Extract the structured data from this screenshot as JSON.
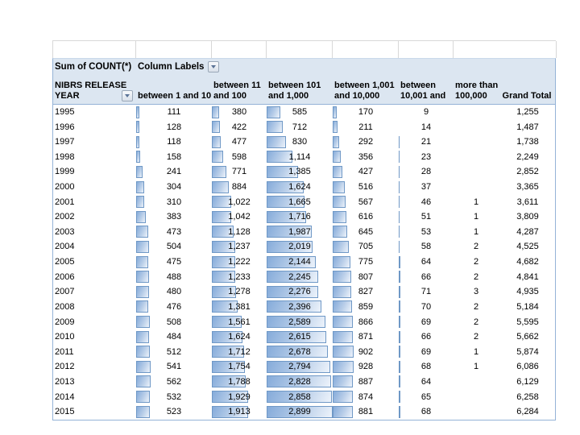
{
  "pivot": {
    "header": {
      "measure": "Sum of COUNT(*)",
      "column_labels": "Column Labels",
      "row_field_line1": "NIBRS RELEASE",
      "row_field_line2": "YEAR"
    },
    "columns": [
      {
        "line1": "",
        "line2": "between 1 and 10"
      },
      {
        "line1": "between 11",
        "line2": "and 100"
      },
      {
        "line1": "between 101",
        "line2": "and 1,000"
      },
      {
        "line1": "between 1,001",
        "line2": "and 10,000"
      },
      {
        "line1": "between",
        "line2": "10,001 and"
      },
      {
        "line1": "more than",
        "line2": "100,000"
      },
      {
        "line1": "",
        "line2": "Grand Total"
      }
    ],
    "bar_scale_max": 2899,
    "rows": [
      {
        "year": "1995",
        "values": [
          "111",
          "380",
          "585",
          "170",
          "9",
          ""
        ],
        "total": "1,255"
      },
      {
        "year": "1996",
        "values": [
          "128",
          "422",
          "712",
          "211",
          "14",
          ""
        ],
        "total": "1,487"
      },
      {
        "year": "1997",
        "values": [
          "118",
          "477",
          "830",
          "292",
          "21",
          ""
        ],
        "total": "1,738"
      },
      {
        "year": "1998",
        "values": [
          "158",
          "598",
          "1,114",
          "356",
          "23",
          ""
        ],
        "total": "2,249"
      },
      {
        "year": "1999",
        "values": [
          "241",
          "771",
          "1,385",
          "427",
          "28",
          ""
        ],
        "total": "2,852"
      },
      {
        "year": "2000",
        "values": [
          "304",
          "884",
          "1,624",
          "516",
          "37",
          ""
        ],
        "total": "3,365"
      },
      {
        "year": "2001",
        "values": [
          "310",
          "1,022",
          "1,665",
          "567",
          "46",
          "1"
        ],
        "total": "3,611"
      },
      {
        "year": "2002",
        "values": [
          "383",
          "1,042",
          "1,716",
          "616",
          "51",
          "1"
        ],
        "total": "3,809"
      },
      {
        "year": "2003",
        "values": [
          "473",
          "1,128",
          "1,987",
          "645",
          "53",
          "1"
        ],
        "total": "4,287"
      },
      {
        "year": "2004",
        "values": [
          "504",
          "1,237",
          "2,019",
          "705",
          "58",
          "2"
        ],
        "total": "4,525"
      },
      {
        "year": "2005",
        "values": [
          "475",
          "1,222",
          "2,144",
          "775",
          "64",
          "2"
        ],
        "total": "4,682"
      },
      {
        "year": "2006",
        "values": [
          "488",
          "1,233",
          "2,245",
          "807",
          "66",
          "2"
        ],
        "total": "4,841"
      },
      {
        "year": "2007",
        "values": [
          "480",
          "1,278",
          "2,276",
          "827",
          "71",
          "3"
        ],
        "total": "4,935"
      },
      {
        "year": "2008",
        "values": [
          "476",
          "1,381",
          "2,396",
          "859",
          "70",
          "2"
        ],
        "total": "5,184"
      },
      {
        "year": "2009",
        "values": [
          "508",
          "1,561",
          "2,589",
          "866",
          "69",
          "2"
        ],
        "total": "5,595"
      },
      {
        "year": "2010",
        "values": [
          "484",
          "1,624",
          "2,615",
          "871",
          "66",
          "2"
        ],
        "total": "5,662"
      },
      {
        "year": "2011",
        "values": [
          "512",
          "1,712",
          "2,678",
          "902",
          "69",
          "1"
        ],
        "total": "5,874"
      },
      {
        "year": "2012",
        "values": [
          "541",
          "1,754",
          "2,794",
          "928",
          "68",
          "1"
        ],
        "total": "6,086"
      },
      {
        "year": "2013",
        "values": [
          "562",
          "1,788",
          "2,828",
          "887",
          "64",
          ""
        ],
        "total": "6,129"
      },
      {
        "year": "2014",
        "values": [
          "532",
          "1,929",
          "2,858",
          "874",
          "65",
          ""
        ],
        "total": "6,258"
      },
      {
        "year": "2015",
        "values": [
          "523",
          "1,913",
          "2,899",
          "881",
          "68",
          ""
        ],
        "total": "6,284"
      }
    ],
    "colors": {
      "header_bg": "#DCE6F1",
      "table_border": "#95B3D7",
      "grid_line": "#D8D8D8",
      "bar_border": "#6F98C6",
      "bar_fill_from": "#85ABDA",
      "bar_fill_mid": "#BACFE9",
      "bar_fill_to": "#EDF3FB"
    }
  }
}
